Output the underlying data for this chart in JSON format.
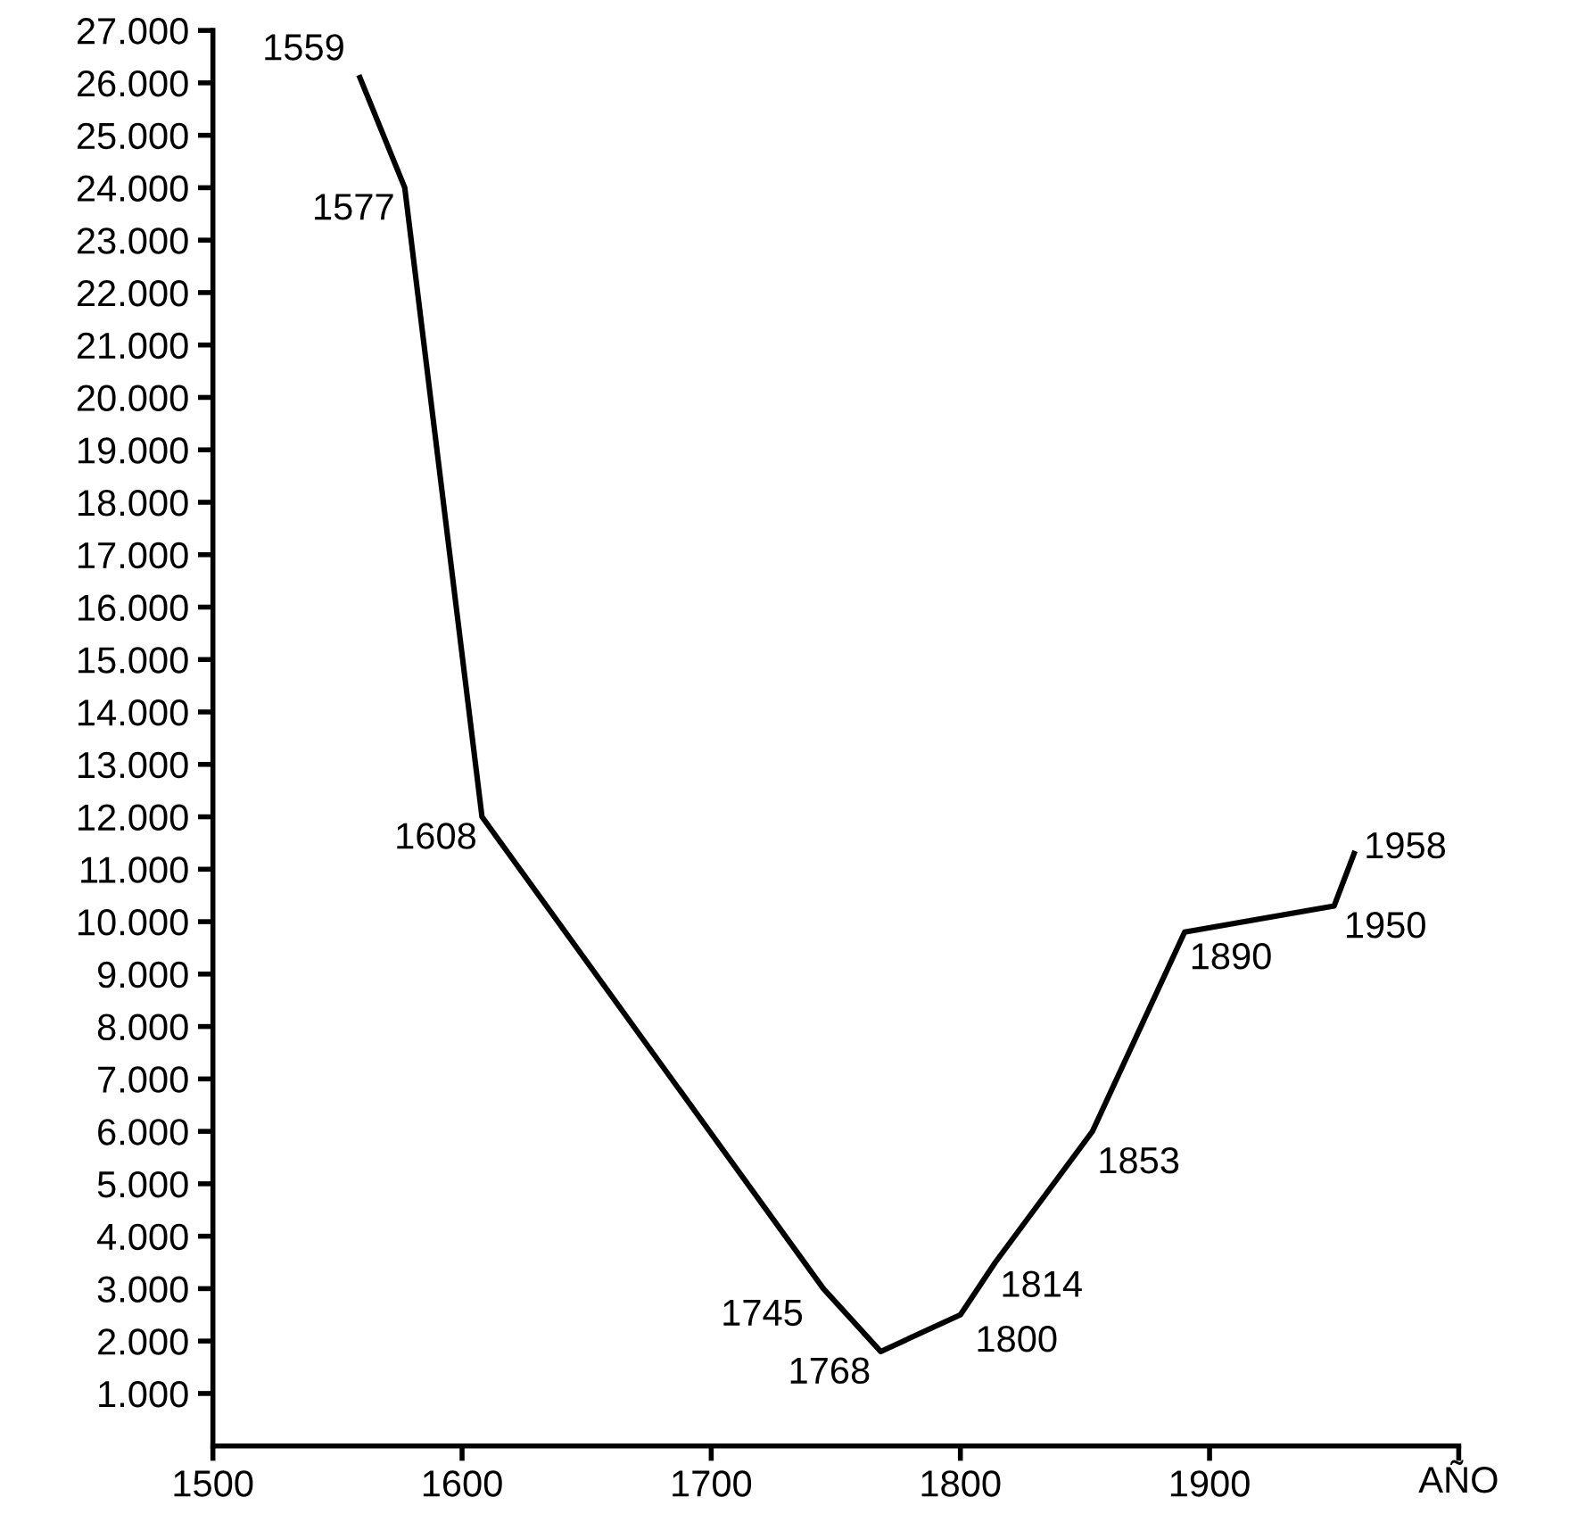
{
  "chart_data": {
    "type": "line",
    "xlabel": "AÑO",
    "x": [
      1559,
      1577,
      1608,
      1745,
      1768,
      1800,
      1814,
      1853,
      1890,
      1950,
      1958
    ],
    "series": [
      {
        "color": "#000000",
        "values": [
          26100,
          24000,
          12000,
          3000,
          1800,
          2500,
          3500,
          6000,
          9800,
          10300,
          11300
        ]
      }
    ],
    "xlim": [
      1500,
      2000
    ],
    "xticks": [
      1500,
      1600,
      1700,
      1800,
      1900,
      {
        "value": 2000,
        "label": null
      }
    ],
    "ylim": [
      0,
      27000
    ],
    "yticks": [
      {
        "value": 1000,
        "label": "1.000"
      },
      {
        "value": 2000,
        "label": "2.000"
      },
      {
        "value": 3000,
        "label": "3.000"
      },
      {
        "value": 4000,
        "label": "4.000"
      },
      {
        "value": 5000,
        "label": "5.000"
      },
      {
        "value": 6000,
        "label": "6.000"
      },
      {
        "value": 7000,
        "label": "7.000"
      },
      {
        "value": 8000,
        "label": "8.000"
      },
      {
        "value": 9000,
        "label": "9.000"
      },
      {
        "value": 10000,
        "label": "10.000"
      },
      {
        "value": 11000,
        "label": "11.000"
      },
      {
        "value": 12000,
        "label": "12.000"
      },
      {
        "value": 13000,
        "label": "13.000"
      },
      {
        "value": 14000,
        "label": "14.000"
      },
      {
        "value": 15000,
        "label": "15.000"
      },
      {
        "value": 16000,
        "label": "16.000"
      },
      {
        "value": 17000,
        "label": "17.000"
      },
      {
        "value": 18000,
        "label": "18.000"
      },
      {
        "value": 19000,
        "label": "19.000"
      },
      {
        "value": 20000,
        "label": "20.000"
      },
      {
        "value": 21000,
        "label": "21.000"
      },
      {
        "value": 22000,
        "label": "22.000"
      },
      {
        "value": 23000,
        "label": "23.000"
      },
      {
        "value": 24000,
        "label": "24.000"
      },
      {
        "value": 25000,
        "label": "25.000"
      },
      {
        "value": 26000,
        "label": "26.000"
      },
      {
        "value": 27000,
        "label": "27.000"
      }
    ],
    "grid": false,
    "legend": false,
    "marker": "none",
    "line_style": "solid",
    "annotations": [
      {
        "text": "1559",
        "x": 1559,
        "y": 26100
      },
      {
        "text": "1577",
        "x": 1577,
        "y": 24000
      },
      {
        "text": "1608",
        "x": 1608,
        "y": 12000
      },
      {
        "text": "1745",
        "x": 1745,
        "y": 3000
      },
      {
        "text": "1768",
        "x": 1768,
        "y": 1800
      },
      {
        "text": "1800",
        "x": 1800,
        "y": 2500
      },
      {
        "text": "1814",
        "x": 1814,
        "y": 3500
      },
      {
        "text": "1853",
        "x": 1853,
        "y": 6000
      },
      {
        "text": "1890",
        "x": 1890,
        "y": 9800
      },
      {
        "text": "1950",
        "x": 1950,
        "y": 10300
      },
      {
        "text": "1958",
        "x": 1958,
        "y": 11300
      }
    ]
  }
}
